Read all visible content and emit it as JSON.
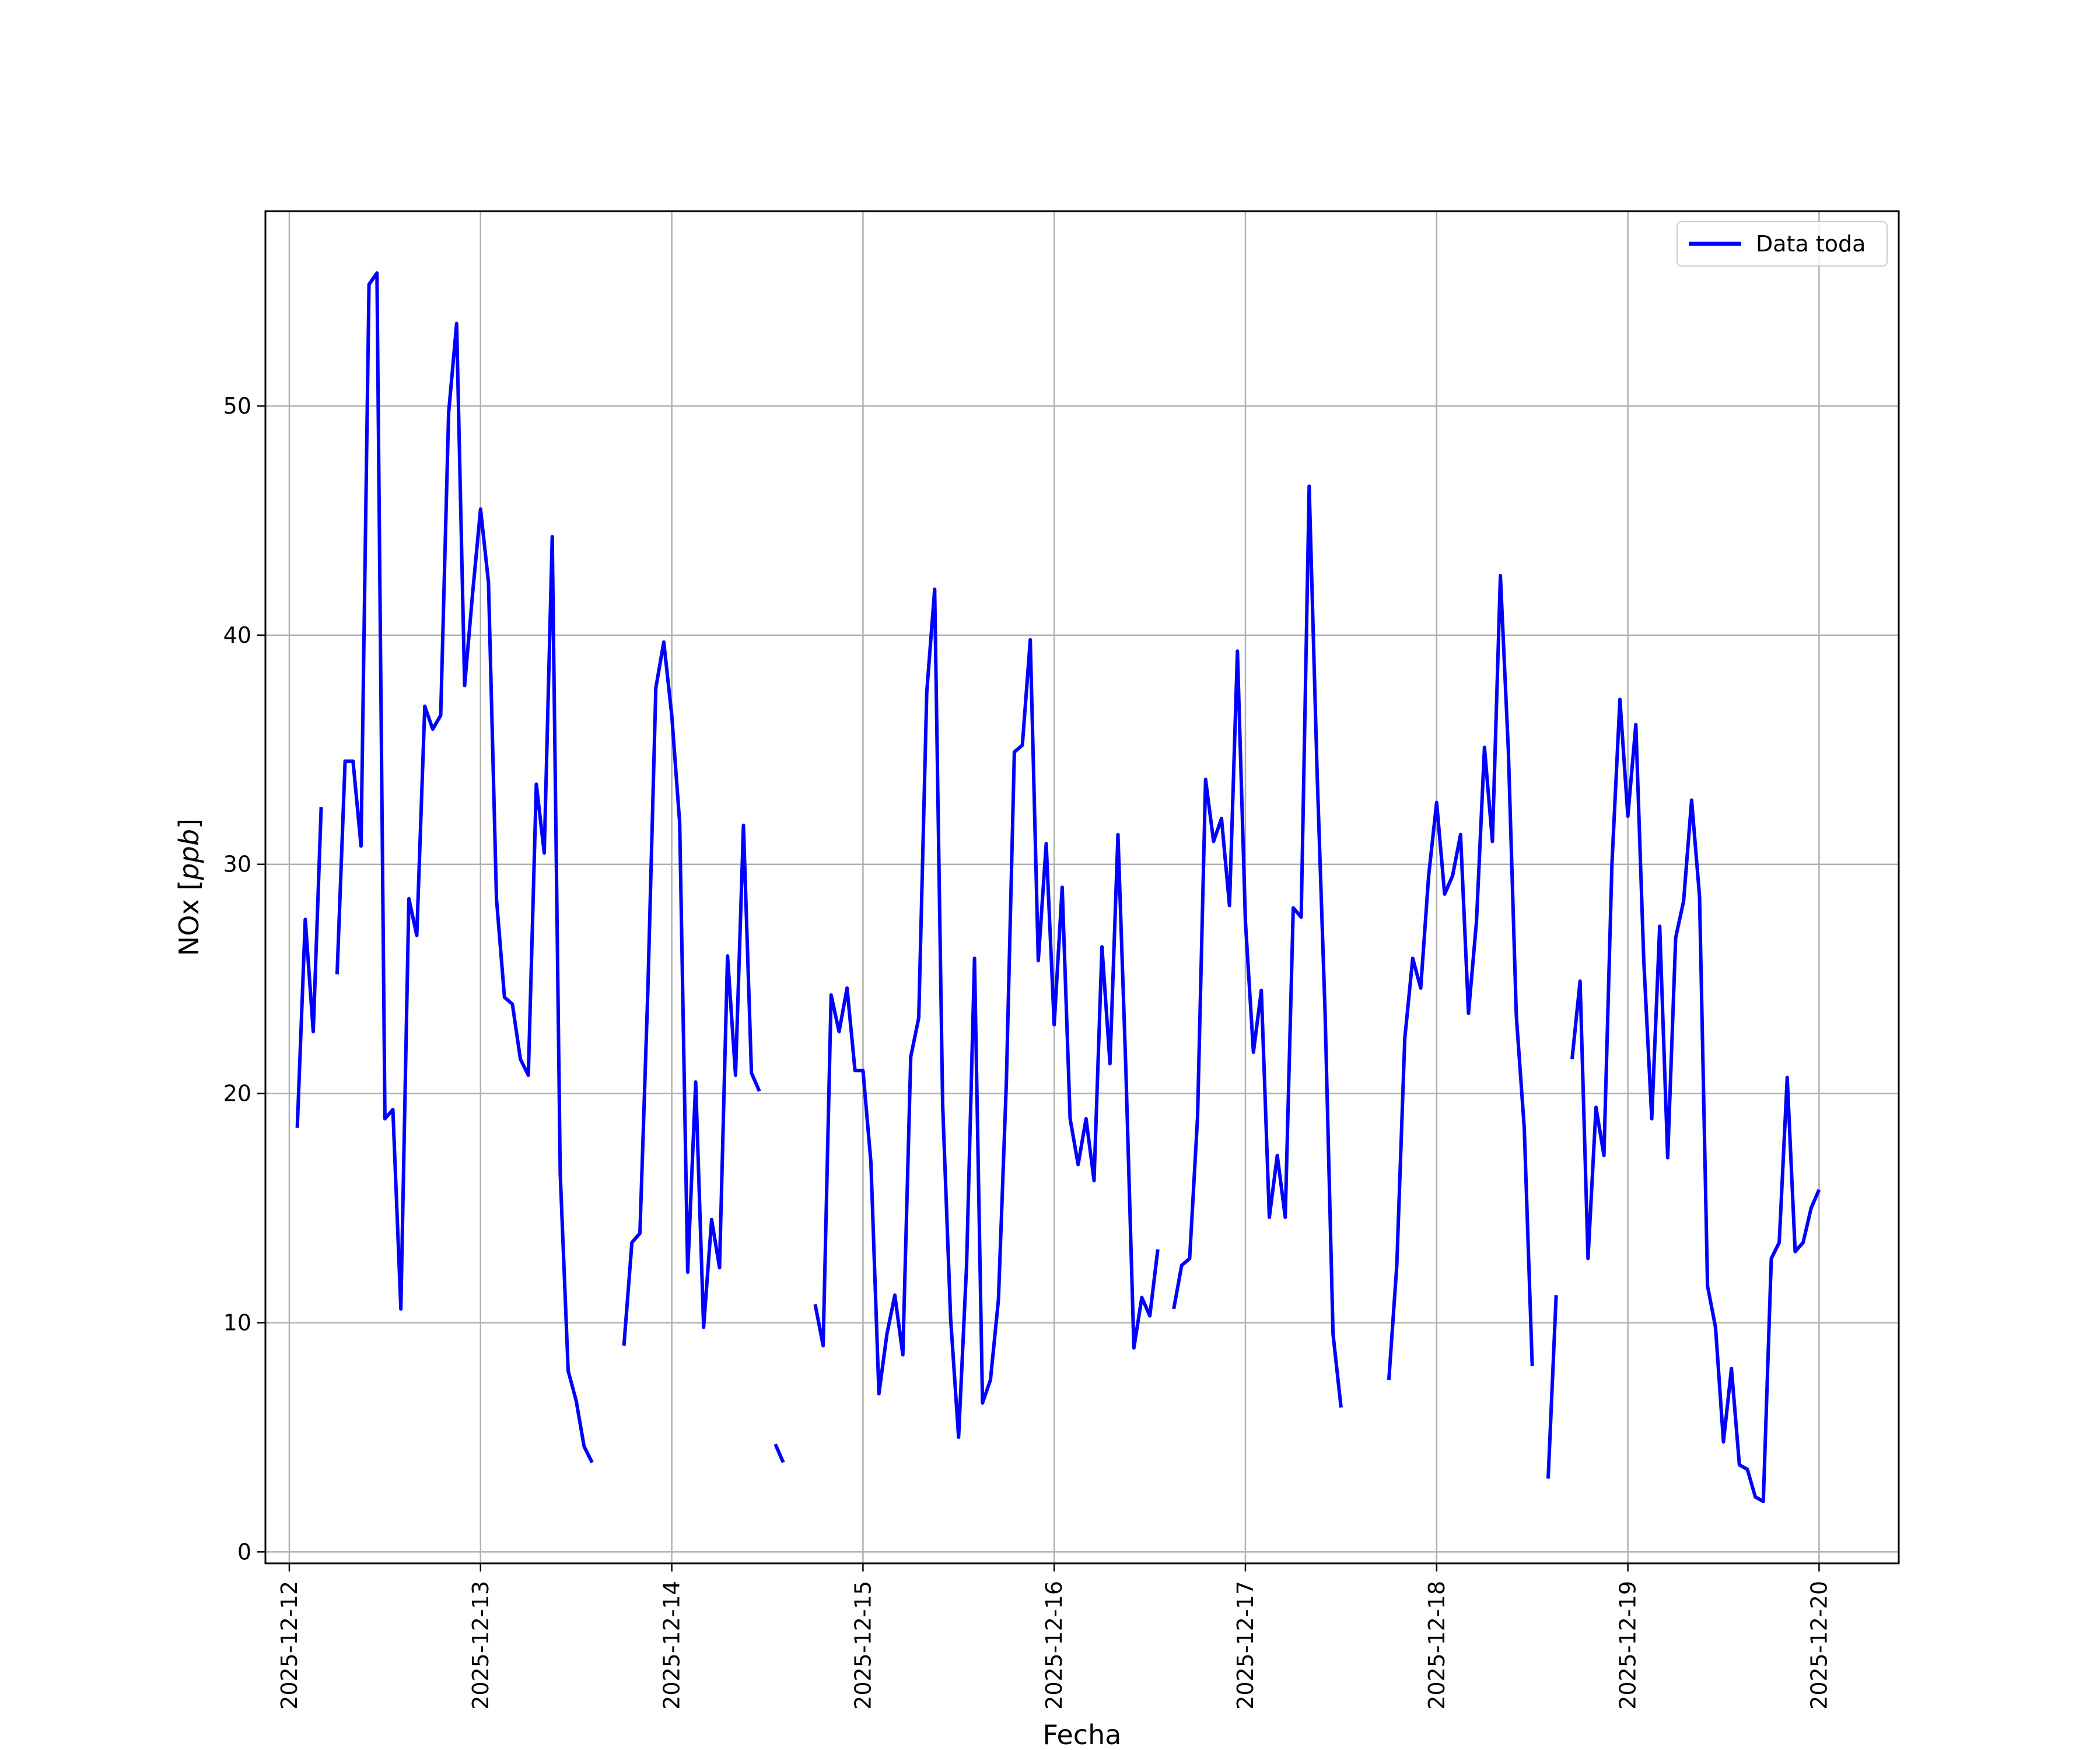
{
  "chart_data": {
    "type": "line",
    "title": "",
    "xlabel": "Fecha",
    "ylabel": "NOx [ppb]",
    "ylabel_base": "NOx [",
    "ylabel_unit": "ppb",
    "ylabel_close": "]",
    "grid": true,
    "legend_position": "upper-right",
    "x_axis_type": "date",
    "xlim": [
      "2025-12-11 21:00",
      "2025-12-20 10:00"
    ],
    "ylim": [
      -0.5,
      58.5
    ],
    "x_ticks": [
      "2025-12-12",
      "2025-12-13",
      "2025-12-14",
      "2025-12-15",
      "2025-12-16",
      "2025-12-17",
      "2025-12-18",
      "2025-12-19",
      "2025-12-20"
    ],
    "y_ticks": [
      0,
      10,
      20,
      30,
      40,
      50
    ],
    "series": [
      {
        "name": "Data toda",
        "color": "#0000ff",
        "segments": [
          [
            [
              "2025-12-12 01:00",
              18.5
            ],
            [
              "2025-12-12 02:00",
              27.6
            ],
            [
              "2025-12-12 03:00",
              22.7
            ],
            [
              "2025-12-12 04:00",
              32.5
            ]
          ],
          [
            [
              "2025-12-12 06:00",
              25.2
            ],
            [
              "2025-12-12 07:00",
              34.5
            ],
            [
              "2025-12-12 08:00",
              34.5
            ],
            [
              "2025-12-12 09:00",
              30.8
            ],
            [
              "2025-12-12 10:00",
              55.3
            ],
            [
              "2025-12-12 11:00",
              55.8
            ],
            [
              "2025-12-12 12:00",
              18.9
            ],
            [
              "2025-12-12 13:00",
              19.3
            ],
            [
              "2025-12-12 14:00",
              10.6
            ],
            [
              "2025-12-12 15:00",
              28.5
            ],
            [
              "2025-12-12 16:00",
              26.9
            ],
            [
              "2025-12-12 17:00",
              36.9
            ],
            [
              "2025-12-12 18:00",
              35.9
            ],
            [
              "2025-12-12 19:00",
              36.5
            ],
            [
              "2025-12-12 20:00",
              49.7
            ],
            [
              "2025-12-12 21:00",
              53.6
            ],
            [
              "2025-12-12 22:00",
              37.8
            ],
            [
              "2025-12-12 23:00",
              41.8
            ],
            [
              "2025-12-13 00:00",
              45.5
            ],
            [
              "2025-12-13 01:00",
              42.3
            ],
            [
              "2025-12-13 02:00",
              28.5
            ],
            [
              "2025-12-13 03:00",
              24.2
            ],
            [
              "2025-12-13 04:00",
              23.9
            ],
            [
              "2025-12-13 05:00",
              21.5
            ],
            [
              "2025-12-13 06:00",
              20.8
            ],
            [
              "2025-12-13 07:00",
              33.5
            ],
            [
              "2025-12-13 08:00",
              30.5
            ],
            [
              "2025-12-13 09:00",
              44.3
            ],
            [
              "2025-12-13 10:00",
              16.5
            ],
            [
              "2025-12-13 11:00",
              7.9
            ],
            [
              "2025-12-13 12:00",
              6.6
            ],
            [
              "2025-12-13 13:00",
              4.6
            ],
            [
              "2025-12-13 14:00",
              3.9
            ]
          ],
          [
            [
              "2025-12-13 18:00",
              9.0
            ],
            [
              "2025-12-13 19:00",
              13.5
            ],
            [
              "2025-12-13 20:00",
              13.9
            ],
            [
              "2025-12-13 21:00",
              24.5
            ],
            [
              "2025-12-13 22:00",
              37.7
            ],
            [
              "2025-12-13 23:00",
              39.7
            ],
            [
              "2025-12-14 00:00",
              36.5
            ],
            [
              "2025-12-14 01:00",
              31.8
            ],
            [
              "2025-12-14 02:00",
              12.2
            ],
            [
              "2025-12-14 03:00",
              20.5
            ],
            [
              "2025-12-14 04:00",
              9.8
            ],
            [
              "2025-12-14 05:00",
              14.5
            ],
            [
              "2025-12-14 06:00",
              12.4
            ],
            [
              "2025-12-14 07:00",
              26.0
            ],
            [
              "2025-12-14 08:00",
              20.8
            ],
            [
              "2025-12-14 09:00",
              31.7
            ],
            [
              "2025-12-14 10:00",
              20.9
            ],
            [
              "2025-12-14 11:00",
              20.1
            ]
          ],
          [
            [
              "2025-12-14 13:00",
              4.7
            ],
            [
              "2025-12-14 14:00",
              3.9
            ]
          ],
          [
            [
              "2025-12-14 18:00",
              10.8
            ],
            [
              "2025-12-14 19:00",
              9.0
            ],
            [
              "2025-12-14 20:00",
              24.3
            ],
            [
              "2025-12-14 21:00",
              22.7
            ],
            [
              "2025-12-14 22:00",
              24.6
            ],
            [
              "2025-12-14 23:00",
              21.0
            ],
            [
              "2025-12-15 00:00",
              21.0
            ],
            [
              "2025-12-15 01:00",
              17.0
            ],
            [
              "2025-12-15 02:00",
              6.9
            ],
            [
              "2025-12-15 03:00",
              9.5
            ],
            [
              "2025-12-15 04:00",
              11.2
            ],
            [
              "2025-12-15 05:00",
              8.6
            ],
            [
              "2025-12-15 06:00",
              21.6
            ],
            [
              "2025-12-15 07:00",
              23.3
            ],
            [
              "2025-12-15 08:00",
              37.5
            ],
            [
              "2025-12-15 09:00",
              42.0
            ],
            [
              "2025-12-15 10:00",
              19.5
            ],
            [
              "2025-12-15 11:00",
              10.2
            ],
            [
              "2025-12-15 12:00",
              5.0
            ],
            [
              "2025-12-15 13:00",
              12.5
            ],
            [
              "2025-12-15 14:00",
              25.9
            ],
            [
              "2025-12-15 15:00",
              6.5
            ],
            [
              "2025-12-15 16:00",
              7.5
            ],
            [
              "2025-12-15 17:00",
              11.0
            ],
            [
              "2025-12-15 18:00",
              20.5
            ],
            [
              "2025-12-15 19:00",
              34.9
            ],
            [
              "2025-12-15 20:00",
              35.2
            ],
            [
              "2025-12-15 21:00",
              39.8
            ],
            [
              "2025-12-15 22:00",
              25.8
            ],
            [
              "2025-12-15 23:00",
              30.9
            ],
            [
              "2025-12-16 00:00",
              23.0
            ],
            [
              "2025-12-16 01:00",
              29.0
            ],
            [
              "2025-12-16 02:00",
              18.9
            ],
            [
              "2025-12-16 03:00",
              16.9
            ],
            [
              "2025-12-16 04:00",
              18.9
            ],
            [
              "2025-12-16 05:00",
              16.2
            ],
            [
              "2025-12-16 06:00",
              26.4
            ],
            [
              "2025-12-16 07:00",
              21.3
            ],
            [
              "2025-12-16 08:00",
              31.3
            ],
            [
              "2025-12-16 09:00",
              21.0
            ],
            [
              "2025-12-16 10:00",
              8.9
            ],
            [
              "2025-12-16 11:00",
              11.1
            ],
            [
              "2025-12-16 12:00",
              10.3
            ],
            [
              "2025-12-16 13:00",
              13.2
            ]
          ],
          [
            [
              "2025-12-16 15:00",
              10.6
            ],
            [
              "2025-12-16 16:00",
              12.5
            ],
            [
              "2025-12-16 17:00",
              12.8
            ],
            [
              "2025-12-16 18:00",
              19.0
            ],
            [
              "2025-12-16 19:00",
              33.7
            ],
            [
              "2025-12-16 20:00",
              31.0
            ],
            [
              "2025-12-16 21:00",
              32.0
            ],
            [
              "2025-12-16 22:00",
              28.2
            ],
            [
              "2025-12-16 23:00",
              39.3
            ],
            [
              "2025-12-17 00:00",
              27.5
            ],
            [
              "2025-12-17 01:00",
              21.8
            ],
            [
              "2025-12-17 02:00",
              24.5
            ],
            [
              "2025-12-17 03:00",
              14.6
            ],
            [
              "2025-12-17 04:00",
              17.3
            ],
            [
              "2025-12-17 05:00",
              14.6
            ],
            [
              "2025-12-17 06:00",
              28.1
            ],
            [
              "2025-12-17 07:00",
              27.7
            ],
            [
              "2025-12-17 08:00",
              46.5
            ],
            [
              "2025-12-17 09:00",
              34.0
            ],
            [
              "2025-12-17 10:00",
              23.5
            ],
            [
              "2025-12-17 11:00",
              9.5
            ],
            [
              "2025-12-17 12:00",
              6.3
            ]
          ],
          [
            [
              "2025-12-17 18:00",
              7.5
            ],
            [
              "2025-12-17 19:00",
              12.5
            ],
            [
              "2025-12-17 20:00",
              22.4
            ],
            [
              "2025-12-17 21:00",
              25.9
            ],
            [
              "2025-12-17 22:00",
              24.6
            ],
            [
              "2025-12-17 23:00",
              29.5
            ],
            [
              "2025-12-18 00:00",
              32.7
            ],
            [
              "2025-12-18 01:00",
              28.7
            ],
            [
              "2025-12-18 02:00",
              29.5
            ],
            [
              "2025-12-18 03:00",
              31.3
            ],
            [
              "2025-12-18 04:00",
              23.5
            ],
            [
              "2025-12-18 05:00",
              27.5
            ],
            [
              "2025-12-18 06:00",
              35.1
            ],
            [
              "2025-12-18 07:00",
              31.0
            ],
            [
              "2025-12-18 08:00",
              42.6
            ],
            [
              "2025-12-18 09:00",
              35.0
            ],
            [
              "2025-12-18 10:00",
              23.4
            ],
            [
              "2025-12-18 11:00",
              18.5
            ],
            [
              "2025-12-18 12:00",
              8.1
            ]
          ],
          [
            [
              "2025-12-18 14:00",
              3.2
            ],
            [
              "2025-12-18 15:00",
              11.2
            ]
          ],
          [
            [
              "2025-12-18 17:00",
              21.5
            ],
            [
              "2025-12-18 18:00",
              24.9
            ],
            [
              "2025-12-18 19:00",
              12.8
            ],
            [
              "2025-12-18 20:00",
              19.4
            ],
            [
              "2025-12-18 21:00",
              17.3
            ],
            [
              "2025-12-18 22:00",
              30.0
            ],
            [
              "2025-12-18 23:00",
              37.2
            ],
            [
              "2025-12-19 00:00",
              32.1
            ],
            [
              "2025-12-19 01:00",
              36.1
            ],
            [
              "2025-12-19 02:00",
              25.8
            ],
            [
              "2025-12-19 03:00",
              18.9
            ],
            [
              "2025-12-19 04:00",
              27.3
            ],
            [
              "2025-12-19 05:00",
              17.2
            ],
            [
              "2025-12-19 06:00",
              26.8
            ],
            [
              "2025-12-19 07:00",
              28.4
            ],
            [
              "2025-12-19 08:00",
              32.8
            ],
            [
              "2025-12-19 09:00",
              28.6
            ],
            [
              "2025-12-19 10:00",
              11.6
            ],
            [
              "2025-12-19 11:00",
              9.8
            ],
            [
              "2025-12-19 12:00",
              4.8
            ],
            [
              "2025-12-19 13:00",
              8.0
            ],
            [
              "2025-12-19 14:00",
              3.8
            ],
            [
              "2025-12-19 15:00",
              3.6
            ],
            [
              "2025-12-19 16:00",
              2.4
            ],
            [
              "2025-12-19 17:00",
              2.2
            ],
            [
              "2025-12-19 18:00",
              12.8
            ],
            [
              "2025-12-19 19:00",
              13.5
            ],
            [
              "2025-12-19 20:00",
              20.7
            ],
            [
              "2025-12-19 21:00",
              13.1
            ],
            [
              "2025-12-19 22:00",
              13.5
            ],
            [
              "2025-12-19 23:00",
              15.0
            ],
            [
              "2025-12-20 00:00",
              15.8
            ]
          ]
        ]
      }
    ]
  }
}
